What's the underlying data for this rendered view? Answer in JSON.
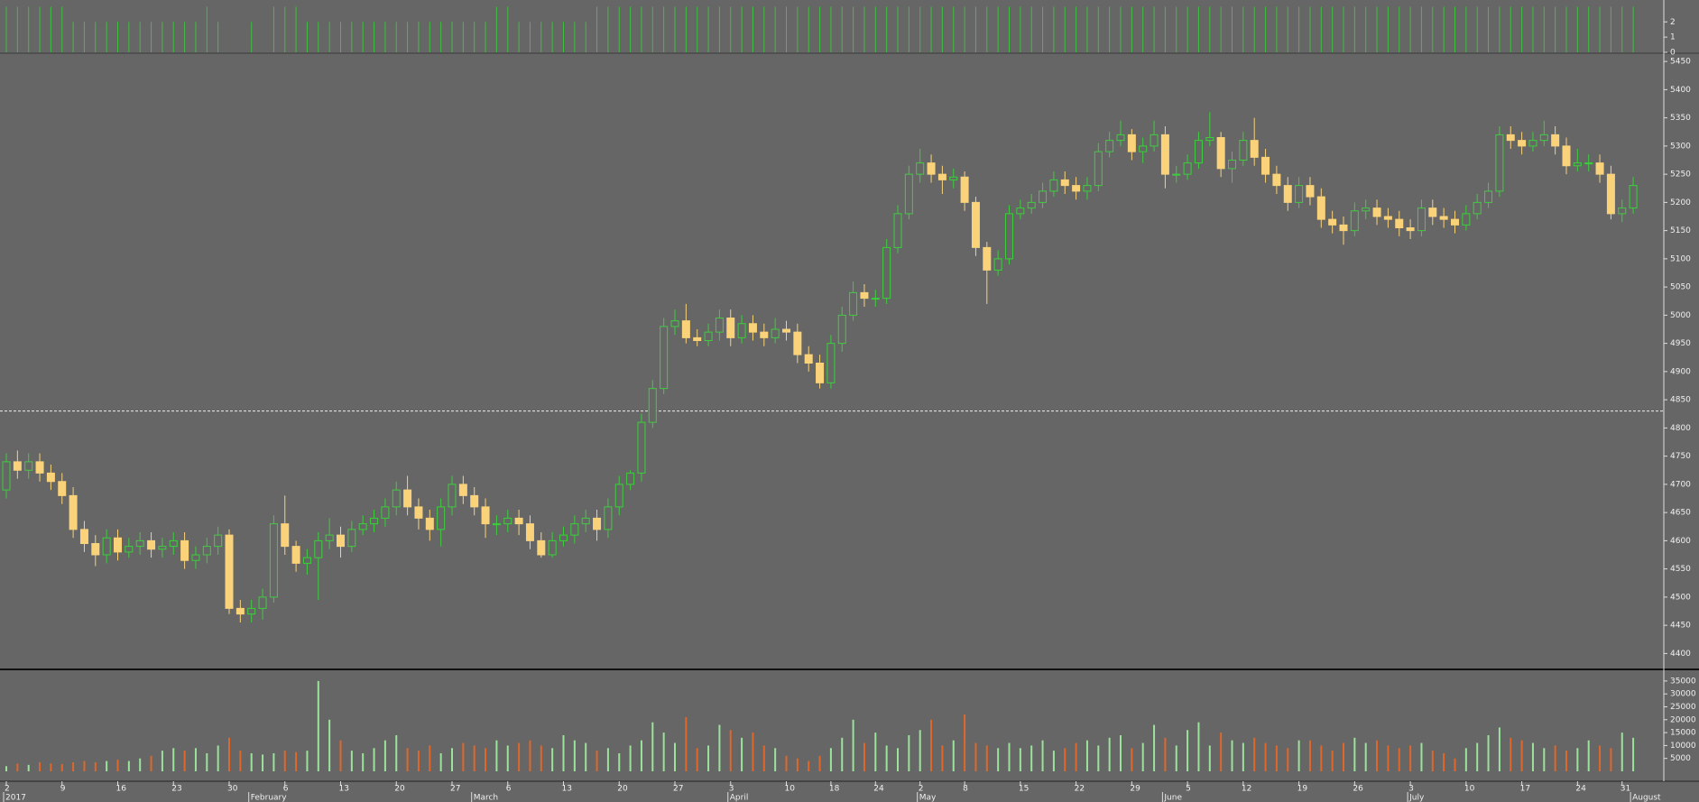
{
  "chart_data": [
    {
      "type": "bar",
      "color": "#3fbf3f",
      "ylim": [
        0,
        3.2
      ],
      "yticks": [
        0,
        1,
        2
      ],
      "values": [
        3,
        3,
        3,
        3,
        3,
        3,
        2,
        2,
        2,
        2,
        2,
        2,
        2,
        2,
        2,
        2,
        2,
        2,
        3,
        2,
        0,
        0,
        2,
        0,
        3,
        3,
        3,
        2,
        2,
        2,
        2,
        2,
        2,
        2,
        2,
        2,
        2,
        2,
        2,
        2,
        2,
        2,
        2,
        2,
        3,
        3,
        2,
        2,
        2,
        2,
        2,
        2,
        2,
        3,
        3,
        3,
        3,
        3,
        3,
        3,
        3,
        3,
        3,
        3,
        3,
        3,
        3,
        3,
        3,
        3,
        3,
        3,
        3,
        3,
        3,
        3,
        3,
        3,
        3,
        3,
        3,
        3,
        3,
        3,
        3,
        3,
        3,
        3,
        3,
        3,
        3,
        3,
        3,
        3,
        3,
        3,
        3,
        3,
        3,
        3,
        3,
        3,
        3,
        3,
        3,
        3,
        3,
        3,
        3,
        3,
        3,
        3,
        3,
        3,
        3,
        3,
        3,
        3,
        3,
        3,
        3,
        3,
        3,
        3,
        3,
        3,
        3,
        3,
        3,
        3,
        3,
        3,
        3,
        3,
        3,
        3,
        3,
        3,
        3,
        3,
        3,
        3,
        3,
        3,
        3,
        3,
        3
      ]
    },
    {
      "type": "candlestick",
      "up_color": "#3ccf3c",
      "down_color": "#f9d27a",
      "cursor": 4830,
      "ylim": [
        4375,
        5463
      ],
      "yticks": [
        4400,
        4450,
        4500,
        4550,
        4600,
        4650,
        4700,
        4750,
        4800,
        4850,
        4900,
        4950,
        5000,
        5050,
        5100,
        5150,
        5200,
        5250,
        5300,
        5350,
        5400,
        5450
      ],
      "categories": [
        "2",
        null,
        null,
        null,
        null,
        "9",
        null,
        null,
        null,
        null,
        "16",
        null,
        null,
        null,
        null,
        "23",
        null,
        null,
        null,
        null,
        "30",
        null,
        null,
        null,
        null,
        "6",
        null,
        null,
        null,
        null,
        "13",
        null,
        null,
        null,
        null,
        "20",
        null,
        null,
        null,
        null,
        "27",
        null,
        null,
        null,
        null,
        "6",
        null,
        null,
        null,
        null,
        "13",
        null,
        null,
        null,
        null,
        "20",
        null,
        null,
        null,
        null,
        "27",
        null,
        null,
        null,
        null,
        "3",
        null,
        null,
        null,
        null,
        "10",
        null,
        null,
        null,
        "18",
        null,
        null,
        null,
        "24",
        null,
        null,
        null,
        "2",
        null,
        null,
        null,
        "8",
        null,
        null,
        null,
        null,
        "15",
        null,
        null,
        null,
        null,
        "22",
        null,
        null,
        null,
        null,
        "29",
        null,
        null,
        null,
        null,
        "5",
        null,
        null,
        null,
        null,
        "12",
        null,
        null,
        null,
        null,
        "19",
        null,
        null,
        null,
        null,
        "26",
        null,
        null,
        null,
        null,
        "3",
        null,
        null,
        null,
        null,
        "10",
        null,
        null,
        null,
        null,
        "17",
        null,
        null,
        null,
        null,
        "24",
        null,
        null,
        null,
        "31",
        null
      ],
      "months": [
        "2017",
        null,
        null,
        null,
        null,
        null,
        null,
        null,
        null,
        null,
        null,
        null,
        null,
        null,
        null,
        null,
        null,
        null,
        null,
        null,
        null,
        null,
        "February",
        null,
        null,
        null,
        null,
        null,
        null,
        null,
        null,
        null,
        null,
        null,
        null,
        null,
        null,
        null,
        null,
        null,
        null,
        null,
        "March",
        null,
        null,
        null,
        null,
        null,
        null,
        null,
        null,
        null,
        null,
        null,
        null,
        null,
        null,
        null,
        null,
        null,
        null,
        null,
        null,
        null,
        null,
        "April",
        null,
        null,
        null,
        null,
        null,
        null,
        null,
        null,
        null,
        null,
        null,
        null,
        null,
        null,
        null,
        null,
        "May",
        null,
        null,
        null,
        null,
        null,
        null,
        null,
        null,
        null,
        null,
        null,
        null,
        null,
        null,
        null,
        null,
        null,
        null,
        null,
        null,
        null,
        "June",
        null,
        null,
        null,
        null,
        null,
        null,
        null,
        null,
        null,
        null,
        null,
        null,
        null,
        null,
        null,
        null,
        null,
        null,
        null,
        null,
        null,
        "July",
        null,
        null,
        null,
        null,
        null,
        null,
        null,
        null,
        null,
        null,
        null,
        null,
        null,
        null,
        null,
        null,
        null,
        null,
        null,
        "August"
      ],
      "open": [
        4690,
        4740,
        4725,
        4740,
        4720,
        4705,
        4680,
        4620,
        4595,
        4575,
        4605,
        4580,
        4590,
        4600,
        4585,
        4590,
        4600,
        4565,
        4575,
        4590,
        4610,
        4480,
        4470,
        4480,
        4500,
        4630,
        4590,
        4560,
        4570,
        4600,
        4610,
        4590,
        4620,
        4630,
        4640,
        4660,
        4690,
        4660,
        4640,
        4620,
        4660,
        4700,
        4680,
        4660,
        4630,
        4630,
        4640,
        4630,
        4600,
        4575,
        4600,
        4610,
        4630,
        4640,
        4620,
        4660,
        4700,
        4720,
        4810,
        4870,
        4980,
        4990,
        4960,
        4955,
        4970,
        4995,
        4960,
        4985,
        4970,
        4960,
        4975,
        4970,
        4930,
        4915,
        4880,
        4950,
        5000,
        5040,
        5030,
        5030,
        5120,
        5180,
        5250,
        5270,
        5250,
        5240,
        5245,
        5200,
        5120,
        5080,
        5100,
        5180,
        5190,
        5200,
        5220,
        5240,
        5230,
        5220,
        5230,
        5290,
        5310,
        5320,
        5290,
        5300,
        5320,
        5250,
        5250,
        5270,
        5310,
        5315,
        5260,
        5275,
        5310,
        5280,
        5250,
        5230,
        5200,
        5230,
        5210,
        5170,
        5160,
        5150,
        5185,
        5190,
        5175,
        5170,
        5155,
        5150,
        5190,
        5175,
        5170,
        5160,
        5180,
        5200,
        5220,
        5320,
        5310,
        5300,
        5310,
        5320,
        5300,
        5265,
        5270,
        5270,
        5250,
        5180,
        5190
      ],
      "high": [
        4755,
        4760,
        4755,
        4755,
        4735,
        4720,
        4695,
        4635,
        4610,
        4620,
        4620,
        4605,
        4615,
        4615,
        4605,
        4615,
        4615,
        4590,
        4605,
        4625,
        4620,
        4495,
        4495,
        4515,
        4645,
        4680,
        4600,
        4585,
        4615,
        4640,
        4625,
        4635,
        4645,
        4655,
        4675,
        4705,
        4715,
        4675,
        4655,
        4675,
        4715,
        4715,
        4695,
        4675,
        4645,
        4655,
        4655,
        4645,
        4615,
        4615,
        4625,
        4645,
        4655,
        4655,
        4675,
        4715,
        4725,
        4825,
        4885,
        4995,
        5010,
        5020,
        4975,
        4985,
        5010,
        5010,
        5000,
        5000,
        4985,
        4995,
        4990,
        4985,
        4945,
        4930,
        4965,
        5015,
        5060,
        5055,
        5045,
        5135,
        5195,
        5265,
        5295,
        5285,
        5265,
        5260,
        5255,
        5210,
        5130,
        5115,
        5195,
        5205,
        5215,
        5235,
        5255,
        5255,
        5245,
        5245,
        5305,
        5325,
        5345,
        5330,
        5315,
        5345,
        5335,
        5265,
        5285,
        5325,
        5360,
        5325,
        5290,
        5325,
        5350,
        5295,
        5265,
        5245,
        5245,
        5245,
        5225,
        5185,
        5175,
        5200,
        5205,
        5205,
        5190,
        5185,
        5170,
        5205,
        5205,
        5190,
        5185,
        5195,
        5215,
        5235,
        5335,
        5335,
        5325,
        5325,
        5345,
        5335,
        5315,
        5295,
        5285,
        5285,
        5265,
        5205,
        5245
      ],
      "low": [
        4675,
        4710,
        4710,
        4705,
        4690,
        4665,
        4605,
        4580,
        4555,
        4560,
        4565,
        4570,
        4575,
        4570,
        4570,
        4575,
        4550,
        4550,
        4560,
        4575,
        4470,
        4455,
        4455,
        4460,
        4490,
        4575,
        4545,
        4540,
        4495,
        4585,
        4570,
        4580,
        4610,
        4615,
        4625,
        4645,
        4645,
        4620,
        4600,
        4590,
        4645,
        4665,
        4645,
        4605,
        4610,
        4615,
        4610,
        4585,
        4570,
        4570,
        4590,
        4595,
        4615,
        4600,
        4605,
        4645,
        4690,
        4705,
        4800,
        4860,
        4965,
        4950,
        4945,
        4945,
        4955,
        4945,
        4950,
        4955,
        4945,
        4950,
        4955,
        4915,
        4900,
        4870,
        4870,
        4935,
        4990,
        5015,
        5015,
        5020,
        5110,
        5170,
        5235,
        5235,
        5215,
        5225,
        5185,
        5105,
        5020,
        5070,
        5090,
        5170,
        5180,
        5190,
        5210,
        5215,
        5205,
        5205,
        5220,
        5280,
        5300,
        5275,
        5270,
        5290,
        5225,
        5235,
        5240,
        5260,
        5300,
        5245,
        5235,
        5265,
        5265,
        5235,
        5215,
        5185,
        5190,
        5195,
        5155,
        5145,
        5125,
        5140,
        5170,
        5160,
        5155,
        5140,
        5135,
        5140,
        5160,
        5155,
        5145,
        5150,
        5170,
        5190,
        5210,
        5295,
        5285,
        5290,
        5300,
        5285,
        5250,
        5255,
        5255,
        5235,
        5170,
        5165,
        5180
      ],
      "close": [
        4740,
        4725,
        4740,
        4720,
        4705,
        4680,
        4620,
        4595,
        4575,
        4605,
        4580,
        4590,
        4600,
        4585,
        4590,
        4600,
        4565,
        4575,
        4590,
        4610,
        4480,
        4470,
        4480,
        4500,
        4630,
        4590,
        4560,
        4570,
        4600,
        4610,
        4590,
        4620,
        4630,
        4640,
        4660,
        4690,
        4660,
        4640,
        4620,
        4660,
        4700,
        4680,
        4660,
        4630,
        4630,
        4640,
        4630,
        4600,
        4575,
        4600,
        4610,
        4630,
        4640,
        4620,
        4660,
        4700,
        4720,
        4810,
        4870,
        4980,
        4990,
        4960,
        4955,
        4970,
        4995,
        4960,
        4985,
        4970,
        4960,
        4975,
        4970,
        4930,
        4915,
        4880,
        4950,
        5000,
        5040,
        5030,
        5030,
        5120,
        5180,
        5250,
        5270,
        5250,
        5240,
        5245,
        5200,
        5120,
        5080,
        5100,
        5180,
        5190,
        5200,
        5220,
        5240,
        5230,
        5220,
        5230,
        5290,
        5310,
        5320,
        5290,
        5300,
        5320,
        5250,
        5250,
        5270,
        5310,
        5315,
        5260,
        5275,
        5310,
        5280,
        5250,
        5230,
        5200,
        5230,
        5210,
        5170,
        5160,
        5150,
        5185,
        5190,
        5175,
        5170,
        5155,
        5150,
        5190,
        5175,
        5170,
        5160,
        5180,
        5200,
        5220,
        5320,
        5310,
        5300,
        5310,
        5320,
        5300,
        5265,
        5270,
        5270,
        5250,
        5180,
        5190,
        5230
      ]
    },
    {
      "type": "bar",
      "up_color": "#9be39b",
      "down_color": "#e0672a",
      "ylim": [
        0,
        38800
      ],
      "yticks": [
        5000,
        10000,
        15000,
        20000,
        25000,
        30000,
        35000
      ],
      "values": [
        2000,
        3000,
        2500,
        3500,
        3000,
        2800,
        3500,
        4000,
        3500,
        4000,
        4500,
        4000,
        5000,
        6000,
        8000,
        9000,
        8000,
        9000,
        7000,
        10000,
        13000,
        8000,
        7000,
        6500,
        7000,
        8000,
        7500,
        8000,
        35000,
        20000,
        12000,
        8000,
        7000,
        9000,
        12000,
        14000,
        9000,
        8000,
        10000,
        7000,
        9000,
        11000,
        10000,
        9000,
        12000,
        10000,
        11000,
        12000,
        10000,
        9000,
        14000,
        12000,
        11000,
        8000,
        9000,
        7000,
        10000,
        12000,
        19000,
        15000,
        11000,
        21000,
        9000,
        10000,
        18000,
        16000,
        13000,
        15000,
        10000,
        9000,
        6000,
        5000,
        4000,
        6000,
        9000,
        13000,
        20000,
        11000,
        15000,
        10000,
        9000,
        14000,
        16000,
        20000,
        10000,
        12000,
        22000,
        11000,
        10000,
        9000,
        11000,
        9000,
        10000,
        12000,
        8000,
        9000,
        11000,
        12000,
        10000,
        13000,
        14000,
        9000,
        11000,
        18000,
        13000,
        10000,
        16000,
        19000,
        10000,
        15000,
        12000,
        11000,
        13000,
        11000,
        10000,
        9000,
        12000,
        12000,
        10000,
        8000,
        11000,
        13000,
        11000,
        12000,
        10000,
        9000,
        10000,
        11000,
        8000,
        7000,
        5000,
        9000,
        11000,
        14000,
        17000,
        13000,
        12000,
        11000,
        9000,
        10000,
        8000,
        9000,
        12000,
        10000,
        9000,
        15000,
        13000
      ]
    }
  ]
}
